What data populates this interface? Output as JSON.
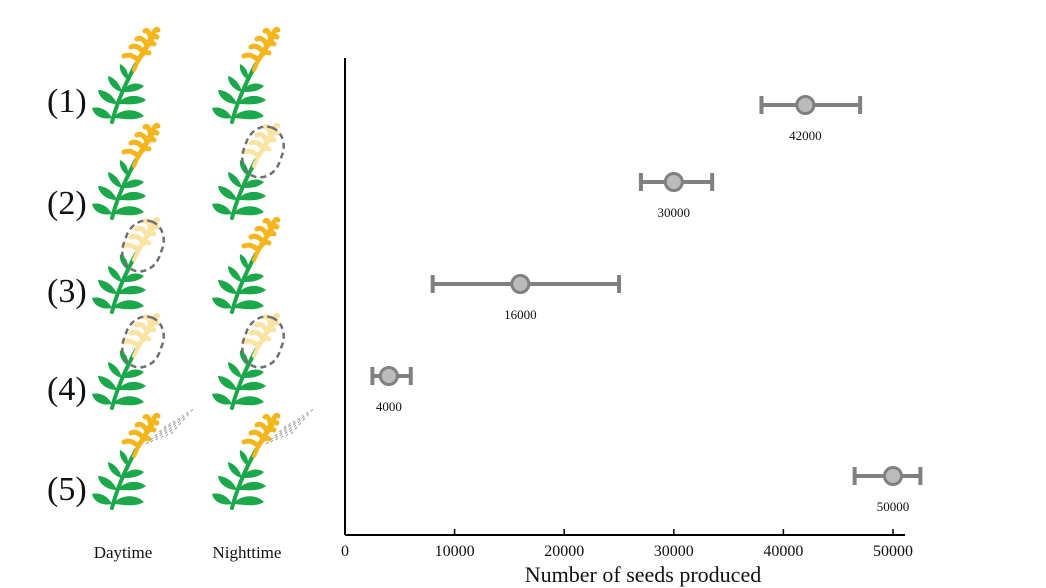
{
  "chart_data": {
    "type": "scatter",
    "xlabel": "Number of seeds produced",
    "xlim": [
      0,
      50000
    ],
    "xticks": [
      0,
      10000,
      20000,
      30000,
      40000,
      50000
    ],
    "rows": [
      {
        "label": "(1)",
        "value": 42000,
        "err_low": 38000,
        "err_high": 47000,
        "value_label": "42000",
        "daytime_covered": false,
        "nighttime_covered": false,
        "daytime_sprayed": false,
        "nighttime_sprayed": false
      },
      {
        "label": "(2)",
        "value": 30000,
        "err_low": 27000,
        "err_high": 33500,
        "value_label": "30000",
        "daytime_covered": false,
        "nighttime_covered": true,
        "daytime_sprayed": false,
        "nighttime_sprayed": false
      },
      {
        "label": "(3)",
        "value": 16000,
        "err_low": 8000,
        "err_high": 25000,
        "value_label": "16000",
        "daytime_covered": true,
        "nighttime_covered": false,
        "daytime_sprayed": false,
        "nighttime_sprayed": false
      },
      {
        "label": "(4)",
        "value": 4000,
        "err_low": 2500,
        "err_high": 6000,
        "value_label": "4000",
        "daytime_covered": true,
        "nighttime_covered": true,
        "daytime_sprayed": false,
        "nighttime_sprayed": false
      },
      {
        "label": "(5)",
        "value": 50000,
        "err_low": 46500,
        "err_high": 52500,
        "value_label": "50000",
        "daytime_covered": false,
        "nighttime_covered": false,
        "daytime_sprayed": true,
        "nighttime_sprayed": true
      }
    ],
    "columns": [
      "Daytime",
      "Nighttime"
    ],
    "colors": {
      "leaf": "#1aa84a",
      "flower": "#f5b51d",
      "flower_covered": "#fbe3a4",
      "marker_fill": "#bbbbbb",
      "marker_stroke": "#808080",
      "cover_stroke": "#707070",
      "spray": "#9a9a9a"
    }
  }
}
